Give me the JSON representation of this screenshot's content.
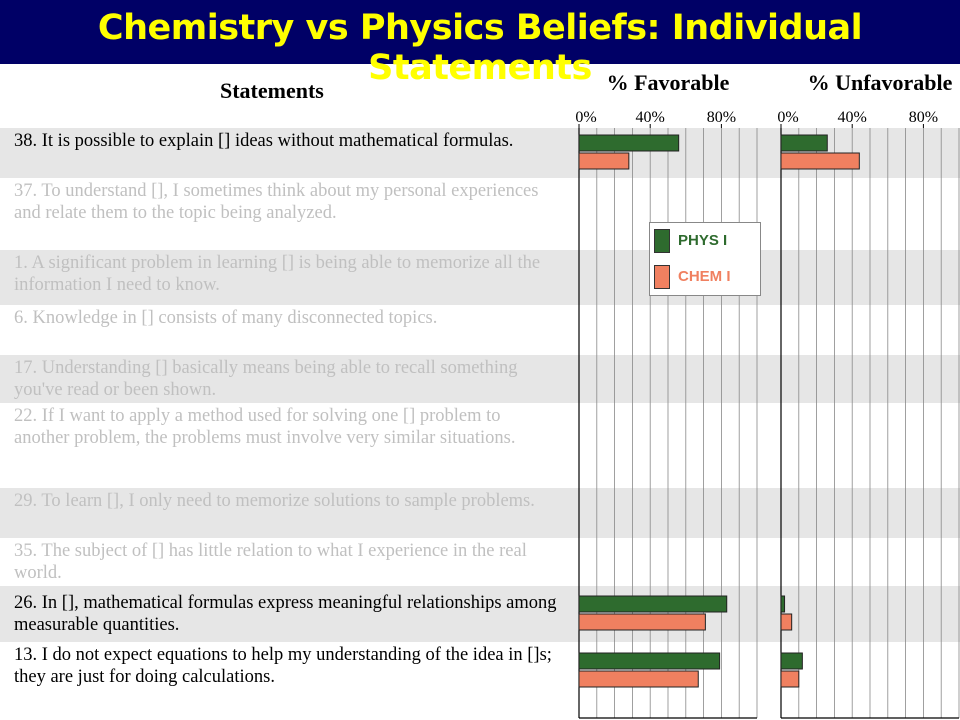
{
  "title": "Chemistry vs Physics Beliefs: Individual Statements",
  "statements_header": "Statements",
  "chart_data": {
    "type": "bar",
    "orientation": "horizontal",
    "categories": [
      "38. It is possible to explain [] ideas without mathematical formulas.",
      "37. To understand [], I sometimes think about my personal experiences and relate them to the topic being analyzed.",
      "1. A significant problem in learning [] is being able to memorize all the information I need to know.",
      "6. Knowledge in [] consists of many disconnected topics.",
      "17. Understanding [] basically means being able to recall something you've read or been shown.",
      "22. If I want to apply a method used for solving one [] problem to another problem, the problems must involve very similar situations.",
      "29. To learn [], I only need to memorize solutions to sample problems.",
      "35. The subject of [] has little relation to what I experience in the real world.",
      "26. In [], mathematical formulas express meaningful relationships among measurable quantities.",
      "13. I do not expect equations to help my understanding of the idea in []s; they are just for doing calculations."
    ],
    "highlight": [
      true,
      false,
      false,
      false,
      false,
      false,
      false,
      false,
      true,
      true
    ],
    "panels": [
      {
        "title": "% Favorable",
        "key": "favorable"
      },
      {
        "title": "% Unfavorable",
        "key": "unfavorable"
      }
    ],
    "series": [
      {
        "name": "PHYS I",
        "color": "#2e6b2e",
        "favorable": [
          56,
          null,
          null,
          null,
          null,
          null,
          null,
          null,
          83,
          79
        ],
        "unfavorable": [
          26,
          null,
          null,
          null,
          null,
          null,
          null,
          null,
          2,
          12
        ]
      },
      {
        "name": "CHEM I",
        "color": "#f08060",
        "favorable": [
          28,
          null,
          null,
          null,
          null,
          null,
          null,
          null,
          71,
          67
        ],
        "unfavorable": [
          44,
          null,
          null,
          null,
          null,
          null,
          null,
          null,
          6,
          10
        ]
      }
    ],
    "xlim": [
      0,
      100
    ],
    "xticks": [
      {
        "value": 0,
        "label": "0%"
      },
      {
        "value": 40,
        "label": "40%"
      },
      {
        "value": 80,
        "label": "80%"
      }
    ],
    "grid_lines": [
      10,
      20,
      30,
      40,
      50,
      60,
      70,
      80,
      90,
      100
    ]
  }
}
